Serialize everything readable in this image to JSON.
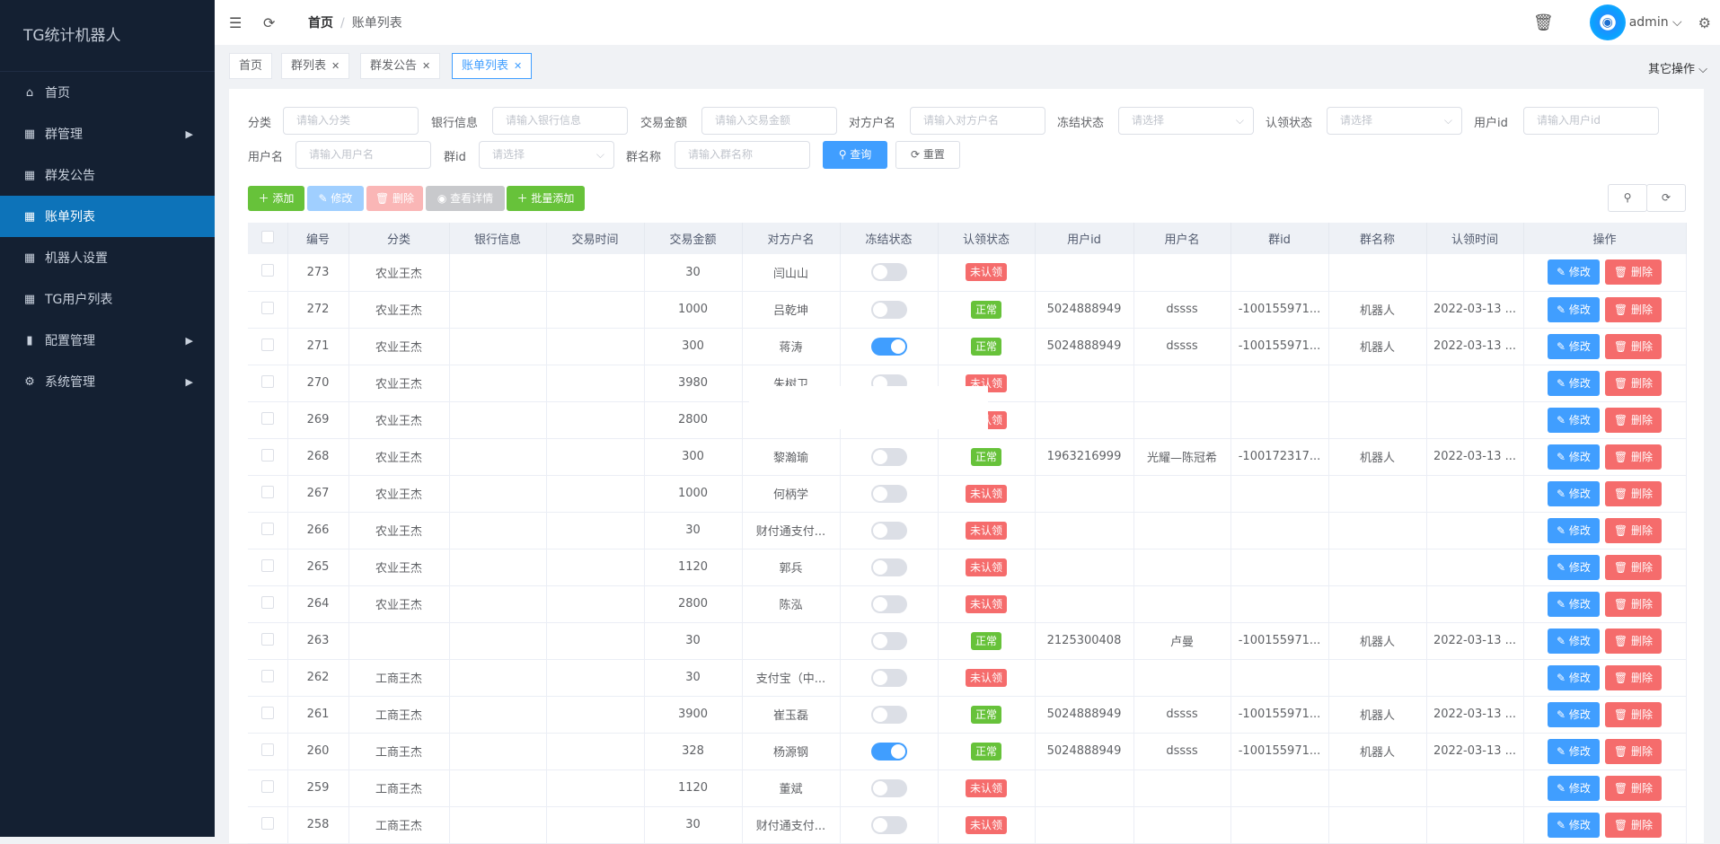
{
  "app": {
    "title": "TG统计机器人"
  },
  "sidebar": {
    "items": [
      {
        "label": "首页",
        "icon": "home-icon",
        "arrow": false
      },
      {
        "label": "群管理",
        "icon": "grid-icon",
        "arrow": true
      },
      {
        "label": "群发公告",
        "icon": "grid-icon",
        "arrow": false
      },
      {
        "label": "账单列表",
        "icon": "grid-icon",
        "arrow": false,
        "active": true
      },
      {
        "label": "机器人设置",
        "icon": "grid-icon",
        "arrow": false
      },
      {
        "label": "TG用户列表",
        "icon": "grid-icon",
        "arrow": false
      },
      {
        "label": "配置管理",
        "icon": "bar-chart-icon",
        "arrow": true
      },
      {
        "label": "系统管理",
        "icon": "gear-icon",
        "arrow": true
      }
    ]
  },
  "header": {
    "breadcrumb": [
      "首页",
      "账单列表"
    ],
    "user": "admin"
  },
  "tags": [
    {
      "label": "首页"
    },
    {
      "label": "群列表"
    },
    {
      "label": "群发公告"
    },
    {
      "label": "账单列表",
      "active": true
    }
  ],
  "other_ops": "其它操作",
  "filters": {
    "category": {
      "label": "分类",
      "placeholder": "请输入分类"
    },
    "bank": {
      "label": "银行信息",
      "placeholder": "请输入银行信息"
    },
    "amount": {
      "label": "交易金额",
      "placeholder": "请输入交易金额"
    },
    "counterparty": {
      "label": "对方户名",
      "placeholder": "请输入对方户名"
    },
    "frozen": {
      "label": "冻结状态",
      "placeholder": "请选择"
    },
    "claim": {
      "label": "认领状态",
      "placeholder": "请选择"
    },
    "userid": {
      "label": "用户id",
      "placeholder": "请输入用户id"
    },
    "username": {
      "label": "用户名",
      "placeholder": "请输入用户名"
    },
    "groupid": {
      "label": "群id",
      "placeholder": "请选择"
    },
    "groupname": {
      "label": "群名称",
      "placeholder": "请输入群名称"
    },
    "search": "查询",
    "reset": "重置"
  },
  "toolbar": {
    "add": "添加",
    "edit": "修改",
    "delete": "删除",
    "detail": "查看详情",
    "batch_add": "批量添加"
  },
  "colors": {
    "primary": "#409eff",
    "success": "#67c23a",
    "danger": "#f56c6c",
    "sidebar": "#142032",
    "active": "#0d73b9"
  },
  "table": {
    "columns": [
      "编号",
      "分类",
      "银行信息",
      "交易时间",
      "交易金额",
      "对方户名",
      "冻结状态",
      "认领状态",
      "用户id",
      "用户名",
      "群id",
      "群名称",
      "认领时间",
      "操作"
    ],
    "row_edit": "修改",
    "row_delete": "删除",
    "rows": [
      {
        "id": "273",
        "cat": "农业王杰",
        "bank": "",
        "time": "",
        "amount": "30",
        "cp": "闫山山",
        "frozen": false,
        "status": "未认领",
        "uid": "",
        "uname": "",
        "gid": "",
        "gname": "",
        "ctime": ""
      },
      {
        "id": "272",
        "cat": "农业王杰",
        "bank": "",
        "time": "",
        "amount": "1000",
        "cp": "吕乾坤",
        "frozen": false,
        "status": "正常",
        "uid": "5024888949",
        "uname": "dssss",
        "gid": "-100155971...",
        "gname": "机器人",
        "ctime": "2022-03-13 ..."
      },
      {
        "id": "271",
        "cat": "农业王杰",
        "bank": "",
        "time": "",
        "amount": "300",
        "cp": "蒋涛",
        "frozen": true,
        "status": "正常",
        "uid": "5024888949",
        "uname": "dssss",
        "gid": "-100155971...",
        "gname": "机器人",
        "ctime": "2022-03-13 ..."
      },
      {
        "id": "270",
        "cat": "农业王杰",
        "bank": "",
        "time": "",
        "amount": "3980",
        "cp": "朱树卫",
        "frozen": false,
        "status": "未认领",
        "uid": "",
        "uname": "",
        "gid": "",
        "gname": "",
        "ctime": ""
      },
      {
        "id": "269",
        "cat": "农业王杰",
        "bank": "",
        "time": "",
        "amount": "2800",
        "cp": "",
        "frozen": false,
        "status": "未认领",
        "uid": "",
        "uname": "",
        "gid": "",
        "gname": "",
        "ctime": ""
      },
      {
        "id": "268",
        "cat": "农业王杰",
        "bank": "",
        "time": "",
        "amount": "300",
        "cp": "黎瀚瑜",
        "frozen": false,
        "status": "正常",
        "uid": "1963216999",
        "uname": "光耀—陈冠希",
        "gid": "-100172317...",
        "gname": "机器人",
        "ctime": "2022-03-13 ..."
      },
      {
        "id": "267",
        "cat": "农业王杰",
        "bank": "",
        "time": "",
        "amount": "1000",
        "cp": "何柄学",
        "frozen": false,
        "status": "未认领",
        "uid": "",
        "uname": "",
        "gid": "",
        "gname": "",
        "ctime": ""
      },
      {
        "id": "266",
        "cat": "农业王杰",
        "bank": "",
        "time": "",
        "amount": "30",
        "cp": "财付通支付...",
        "frozen": false,
        "status": "未认领",
        "uid": "",
        "uname": "",
        "gid": "",
        "gname": "",
        "ctime": ""
      },
      {
        "id": "265",
        "cat": "农业王杰",
        "bank": "",
        "time": "",
        "amount": "1120",
        "cp": "郭兵",
        "frozen": false,
        "status": "未认领",
        "uid": "",
        "uname": "",
        "gid": "",
        "gname": "",
        "ctime": ""
      },
      {
        "id": "264",
        "cat": "农业王杰",
        "bank": "",
        "time": "",
        "amount": "2800",
        "cp": "陈泓",
        "frozen": false,
        "status": "未认领",
        "uid": "",
        "uname": "",
        "gid": "",
        "gname": "",
        "ctime": ""
      },
      {
        "id": "263",
        "cat": "",
        "bank": "",
        "time": "",
        "amount": "30",
        "cp": "",
        "frozen": false,
        "status": "正常",
        "uid": "2125300408",
        "uname": "卢曼",
        "gid": "-100155971...",
        "gname": "机器人",
        "ctime": "2022-03-13 ..."
      },
      {
        "id": "262",
        "cat": "工商王杰",
        "bank": "",
        "time": "",
        "amount": "30",
        "cp": "支付宝（中...",
        "frozen": false,
        "status": "未认领",
        "uid": "",
        "uname": "",
        "gid": "",
        "gname": "",
        "ctime": ""
      },
      {
        "id": "261",
        "cat": "工商王杰",
        "bank": "",
        "time": "",
        "amount": "3900",
        "cp": "崔玉磊",
        "frozen": false,
        "status": "正常",
        "uid": "5024888949",
        "uname": "dssss",
        "gid": "-100155971...",
        "gname": "机器人",
        "ctime": "2022-03-13 ..."
      },
      {
        "id": "260",
        "cat": "工商王杰",
        "bank": "",
        "time": "",
        "amount": "328",
        "cp": "杨源钢",
        "frozen": true,
        "status": "正常",
        "uid": "5024888949",
        "uname": "dssss",
        "gid": "-100155971...",
        "gname": "机器人",
        "ctime": "2022-03-13 ..."
      },
      {
        "id": "259",
        "cat": "工商王杰",
        "bank": "",
        "time": "",
        "amount": "1120",
        "cp": "董斌",
        "frozen": false,
        "status": "未认领",
        "uid": "",
        "uname": "",
        "gid": "",
        "gname": "",
        "ctime": ""
      },
      {
        "id": "258",
        "cat": "工商王杰",
        "bank": "",
        "time": "",
        "amount": "30",
        "cp": "财付通支付...",
        "frozen": false,
        "status": "未认领",
        "uid": "",
        "uname": "",
        "gid": "",
        "gname": "",
        "ctime": ""
      }
    ]
  }
}
